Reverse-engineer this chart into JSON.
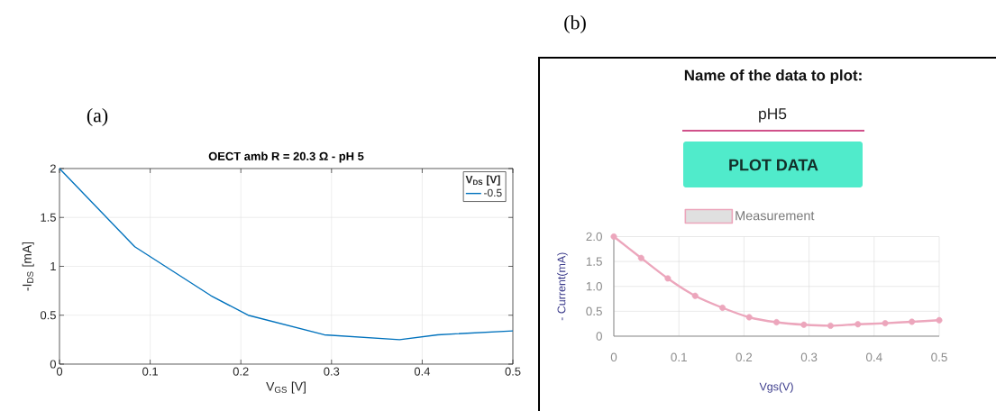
{
  "chart_data": [
    {
      "type": "line",
      "title": "OECT amb R = 20.3 Ω - pH 5",
      "xlabel": "V$_{GS}$ [V]",
      "ylabel": "-I$_{DS}$ [mA]",
      "legend_title": "V$_{DS}$ [V]",
      "annotations": [
        "(a)"
      ],
      "x": [
        0,
        0.083,
        0.167,
        0.208,
        0.292,
        0.375,
        0.417,
        0.5
      ],
      "series": [
        {
          "name": "-0.5",
          "color": "#0072bd",
          "values": [
            2,
            1.2,
            0.7,
            0.5,
            0.3,
            0.25,
            0.3,
            0.34
          ]
        }
      ],
      "xlim": [
        0,
        0.5
      ],
      "ylim": [
        0,
        2
      ],
      "xticks": [
        0,
        0.1,
        0.2,
        0.3,
        0.4,
        0.5
      ],
      "yticks": [
        0,
        0.5,
        1,
        1.5,
        2
      ],
      "grid": true,
      "legend": "top right"
    },
    {
      "type": "line",
      "xlabel": "Vgs(V)",
      "ylabel": "- Current(mA)",
      "annotations": [
        "(b)",
        "Name of the data to plot:",
        "pH5",
        "PLOT DATA"
      ],
      "x": [
        0,
        0.042,
        0.083,
        0.125,
        0.167,
        0.208,
        0.25,
        0.292,
        0.333,
        0.375,
        0.417,
        0.458,
        0.5
      ],
      "series": [
        {
          "name": "Measurement",
          "color": "#eca6bc",
          "values": [
            2.0,
            1.57,
            1.16,
            0.81,
            0.57,
            0.38,
            0.28,
            0.23,
            0.21,
            0.24,
            0.26,
            0.29,
            0.32
          ]
        }
      ],
      "xlim": [
        0,
        0.5
      ],
      "ylim": [
        0,
        2
      ],
      "xticks": [
        0,
        0.1,
        0.2,
        0.3,
        0.4,
        0.5
      ],
      "yticks": [
        0,
        0.5,
        {
          "value": 1,
          "label": "1.0"
        },
        1.5,
        {
          "value": 2,
          "label": "2.0"
        }
      ],
      "grid": true,
      "legend": "top",
      "marker": "circle"
    }
  ]
}
